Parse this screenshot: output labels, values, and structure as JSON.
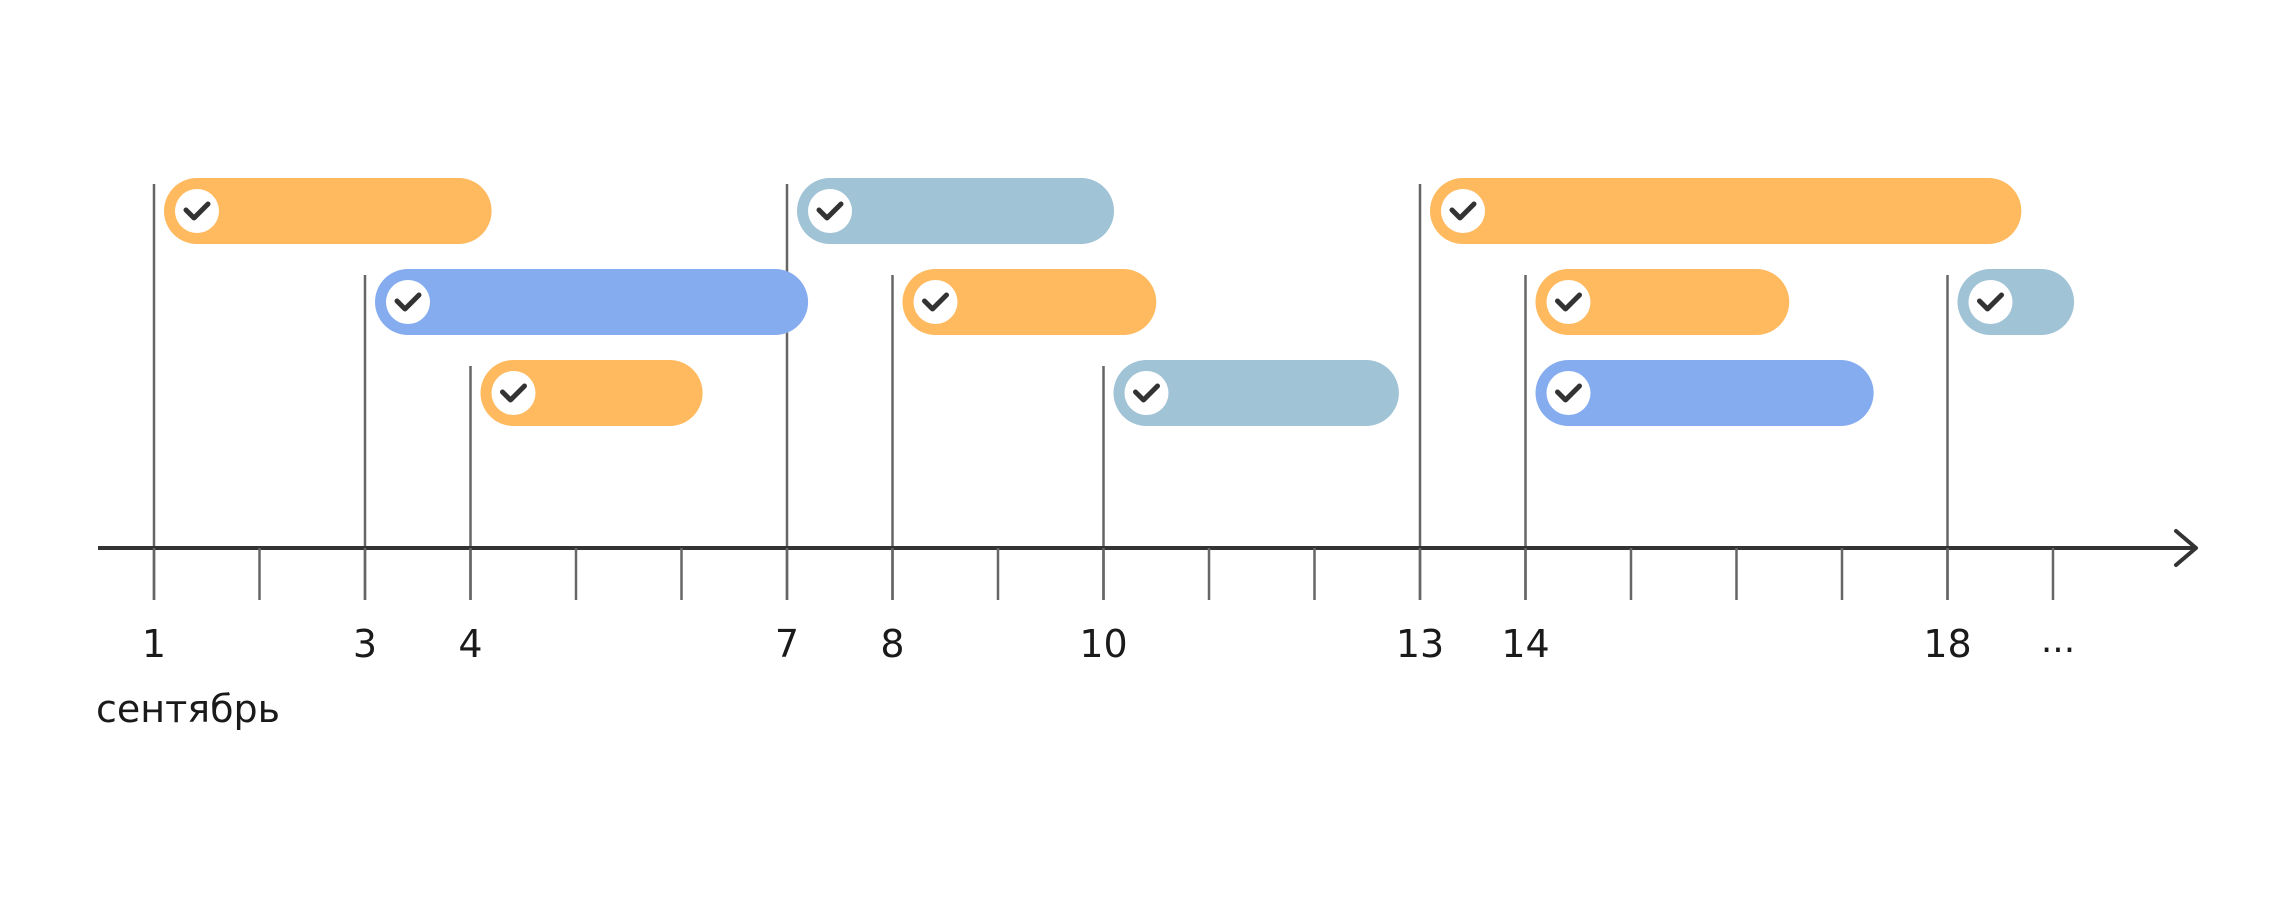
{
  "timeline": {
    "day_labels": [
      {
        "day": 1,
        "text": "1"
      },
      {
        "day": 3,
        "text": "3"
      },
      {
        "day": 4,
        "text": "4"
      },
      {
        "day": 7,
        "text": "7"
      },
      {
        "day": 8,
        "text": "8"
      },
      {
        "day": 10,
        "text": "10"
      },
      {
        "day": 13,
        "text": "13"
      },
      {
        "day": 14,
        "text": "14"
      },
      {
        "day": 18,
        "text": "18"
      }
    ],
    "ellipsis": "...",
    "month_label": "сентябрь",
    "tick_days": [
      1,
      2,
      3,
      4,
      5,
      6,
      7,
      8,
      9,
      10,
      11,
      12,
      13,
      14,
      15,
      16,
      17,
      18,
      19
    ],
    "colors": {
      "orange": "#FFB95E",
      "blue": "#86ACF0",
      "grey_blue": "#A0C3D6",
      "axis": "#333333",
      "marker": "#666666",
      "check": "#333333"
    },
    "tasks": [
      {
        "start": 1,
        "end": 4.2,
        "row": 0,
        "color": "orange"
      },
      {
        "start": 3,
        "end": 7.2,
        "row": 1,
        "color": "blue"
      },
      {
        "start": 4,
        "end": 6.2,
        "row": 2,
        "color": "orange"
      },
      {
        "start": 7,
        "end": 10.1,
        "row": 0,
        "color": "grey_blue"
      },
      {
        "start": 8,
        "end": 10.5,
        "row": 1,
        "color": "orange"
      },
      {
        "start": 10,
        "end": 12.8,
        "row": 2,
        "color": "grey_blue"
      },
      {
        "start": 13,
        "end": 18.7,
        "row": 0,
        "color": "orange"
      },
      {
        "start": 14,
        "end": 16.5,
        "row": 1,
        "color": "orange"
      },
      {
        "start": 14,
        "end": 17.3,
        "row": 2,
        "color": "blue"
      },
      {
        "start": 18,
        "end": 19.2,
        "row": 1,
        "color": "grey_blue"
      }
    ],
    "start_markers": [
      {
        "day": 1,
        "row": 0
      },
      {
        "day": 3,
        "row": 1
      },
      {
        "day": 4,
        "row": 2
      },
      {
        "day": 7,
        "row": 0
      },
      {
        "day": 8,
        "row": 1
      },
      {
        "day": 10,
        "row": 2
      },
      {
        "day": 13,
        "row": 0
      },
      {
        "day": 14,
        "row": 1
      },
      {
        "day": 18,
        "row": 1
      }
    ]
  }
}
